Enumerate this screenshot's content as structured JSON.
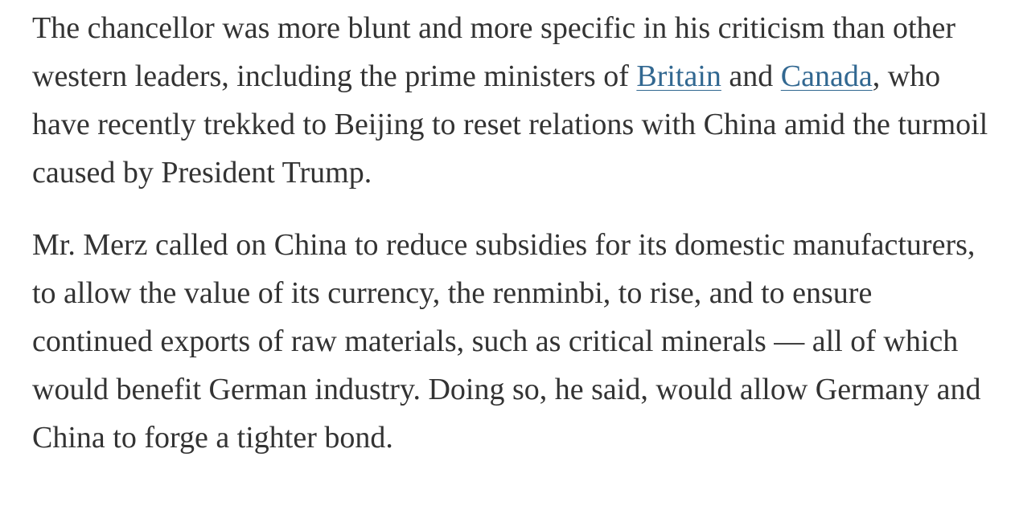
{
  "article": {
    "paragraphs": [
      {
        "segments": [
          {
            "text": "The chancellor was more blunt and more specific in his criticism than other western leaders, including the prime ministers of "
          },
          {
            "text": "Britain",
            "link": true
          },
          {
            "text": " and "
          },
          {
            "text": "Canada",
            "link": true
          },
          {
            "text": ", who have recently trekked to Beijing to reset relations with China amid the turmoil caused by President Trump."
          }
        ]
      },
      {
        "segments": [
          {
            "text": "Mr. Merz called on China to reduce subsidies for its domestic manufacturers, to allow the value of its currency, the renminbi, to rise, and to ensure continued exports of raw materials, such as critical minerals — all of which would benefit German industry. Doing so, he said, would allow Germany and China to forge a tighter bond."
          }
        ]
      }
    ]
  }
}
